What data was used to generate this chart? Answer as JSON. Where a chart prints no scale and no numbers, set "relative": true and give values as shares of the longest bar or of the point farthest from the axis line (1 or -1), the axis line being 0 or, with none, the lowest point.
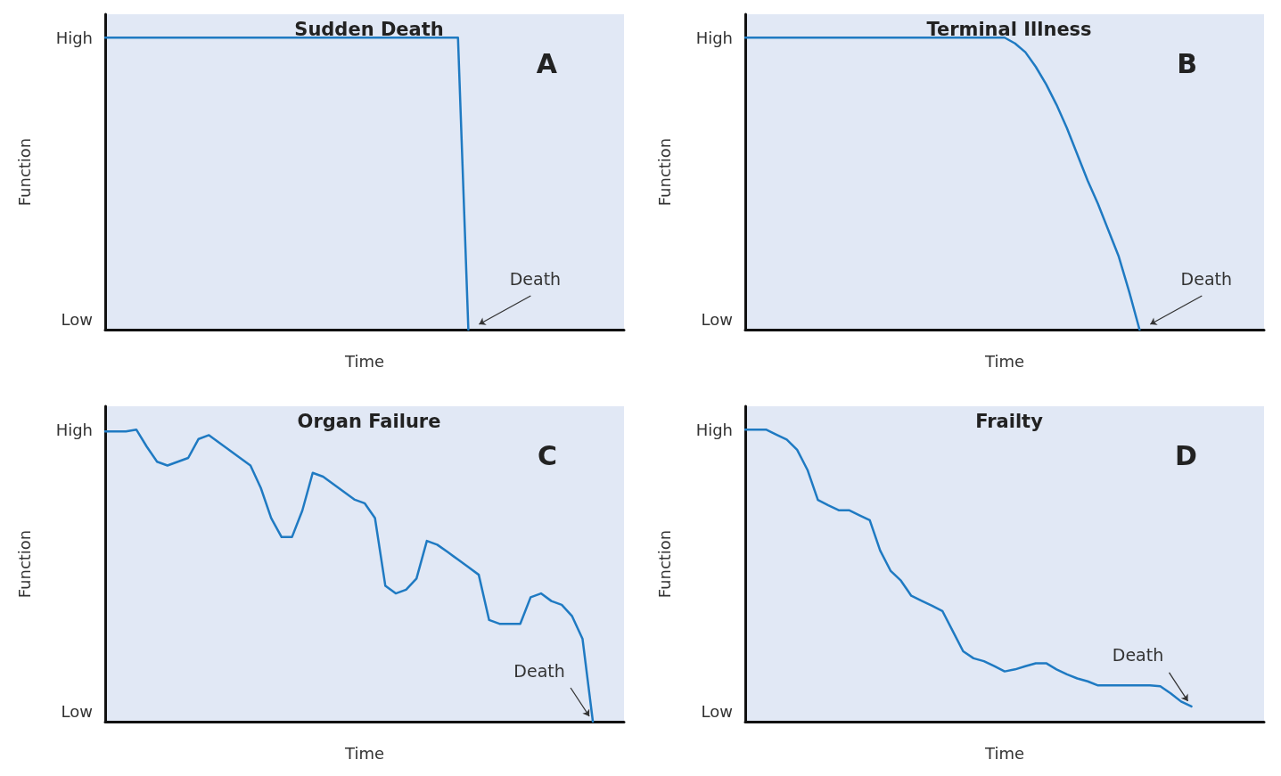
{
  "chart_data": [
    {
      "type": "line",
      "title": "Sudden Death",
      "xlabel": "Time",
      "ylabel": "Function",
      "relative": true,
      "categories": [
        null,
        null,
        null,
        null,
        null,
        null,
        null,
        null,
        null,
        null,
        null,
        null,
        null,
        null,
        null,
        null,
        null,
        null,
        null,
        null,
        null,
        null,
        null,
        null,
        null,
        null,
        null,
        null,
        null,
        null,
        null,
        null,
        null,
        null,
        null,
        null,
        null,
        null,
        null,
        null,
        null,
        null,
        null,
        null,
        null,
        null,
        null,
        null,
        null,
        null,
        null
      ],
      "series": [
        {
          "color": "#1f7ac2",
          "values": [
            1,
            1,
            1,
            1,
            1,
            1,
            1,
            1,
            1,
            1,
            1,
            1,
            1,
            1,
            1,
            1,
            1,
            1,
            1,
            1,
            1,
            1,
            1,
            1,
            1,
            1,
            1,
            1,
            1,
            1,
            1,
            1,
            1,
            1,
            1,
            0,
            null,
            null,
            null,
            null,
            null,
            null,
            null,
            null,
            null,
            null,
            null,
            null,
            null,
            null,
            null
          ]
        }
      ],
      "annotations": [
        "A",
        "Death",
        "High",
        "Low"
      ]
    },
    {
      "type": "line",
      "title": "Terminal Illness",
      "xlabel": "Time",
      "ylabel": "Function",
      "relative": true,
      "categories": [
        null,
        null,
        null,
        null,
        null,
        null,
        null,
        null,
        null,
        null,
        null,
        null,
        null,
        null,
        null,
        null,
        null,
        null,
        null,
        null,
        null,
        null,
        null,
        null,
        null,
        null,
        null,
        null,
        null,
        null,
        null,
        null,
        null,
        null,
        null,
        null,
        null,
        null,
        null,
        null,
        null,
        null,
        null,
        null,
        null,
        null,
        null,
        null,
        null,
        null,
        null
      ],
      "series": [
        {
          "color": "#1f7ac2",
          "values": [
            1,
            1,
            1,
            1,
            1,
            1,
            1,
            1,
            1,
            1,
            1,
            1,
            1,
            1,
            1,
            1,
            1,
            1,
            1,
            1,
            1,
            1,
            1,
            1,
            1,
            1,
            0.98,
            0.95,
            0.9,
            0.84,
            0.77,
            0.69,
            0.6,
            0.51,
            0.43,
            0.34,
            0.25,
            0.13,
            0,
            null,
            null,
            null,
            null,
            null,
            null,
            null,
            null,
            null,
            null,
            null,
            null
          ]
        }
      ],
      "annotations": [
        "B",
        "Death",
        "High",
        "Low"
      ]
    },
    {
      "type": "line",
      "title": "Organ Failure",
      "xlabel": "Time",
      "ylabel": "Function",
      "relative": true,
      "categories": [
        null,
        null,
        null,
        null,
        null,
        null,
        null,
        null,
        null,
        null,
        null,
        null,
        null,
        null,
        null,
        null,
        null,
        null,
        null,
        null,
        null,
        null,
        null,
        null,
        null,
        null,
        null,
        null,
        null,
        null,
        null,
        null,
        null,
        null,
        null,
        null,
        null,
        null,
        null,
        null,
        null,
        null,
        null,
        null,
        null,
        null,
        null,
        null,
        null,
        null,
        null
      ],
      "series": [
        {
          "color": "#1f7ac2",
          "values": [
            0.994,
            0.994,
            0.994,
            1,
            0.942,
            0.89,
            0.877,
            0.89,
            0.903,
            0.968,
            0.981,
            0.955,
            0.929,
            0.903,
            0.877,
            0.8,
            0.697,
            0.632,
            0.632,
            0.723,
            0.852,
            0.839,
            0.813,
            0.787,
            0.761,
            0.748,
            0.697,
            0.465,
            0.439,
            0.452,
            0.49,
            0.619,
            0.606,
            0.581,
            0.555,
            0.529,
            0.503,
            0.348,
            0.335,
            0.335,
            0.335,
            0.426,
            0.439,
            0.413,
            0.4,
            0.361,
            0.284,
            0,
            null,
            null,
            null
          ]
        }
      ],
      "annotations": [
        "C",
        "Death",
        "High",
        "Low"
      ]
    },
    {
      "type": "line",
      "title": "Frailty",
      "xlabel": "Time",
      "ylabel": "Function",
      "relative": true,
      "categories": [
        null,
        null,
        null,
        null,
        null,
        null,
        null,
        null,
        null,
        null,
        null,
        null,
        null,
        null,
        null,
        null,
        null,
        null,
        null,
        null,
        null,
        null,
        null,
        null,
        null,
        null,
        null,
        null,
        null,
        null,
        null,
        null,
        null,
        null,
        null,
        null,
        null,
        null,
        null,
        null,
        null,
        null,
        null,
        null,
        null,
        null,
        null,
        null,
        null,
        null,
        null
      ],
      "series": [
        {
          "color": "#1f7ac2",
          "values": [
            1,
            1,
            1,
            0.983,
            0.966,
            0.931,
            0.862,
            0.759,
            0.741,
            0.724,
            0.724,
            0.707,
            0.69,
            0.586,
            0.517,
            0.483,
            0.431,
            0.414,
            0.397,
            0.379,
            0.31,
            0.241,
            0.217,
            0.207,
            0.19,
            0.172,
            0.179,
            0.19,
            0.2,
            0.2,
            0.179,
            0.162,
            0.148,
            0.138,
            0.124,
            0.124,
            0.124,
            0.124,
            0.124,
            0.124,
            0.121,
            0.097,
            0.069,
            0.052,
            null,
            null,
            null,
            null,
            null,
            null,
            null
          ]
        }
      ],
      "annotations": [
        "D",
        "Death",
        "High",
        "Low"
      ]
    }
  ]
}
